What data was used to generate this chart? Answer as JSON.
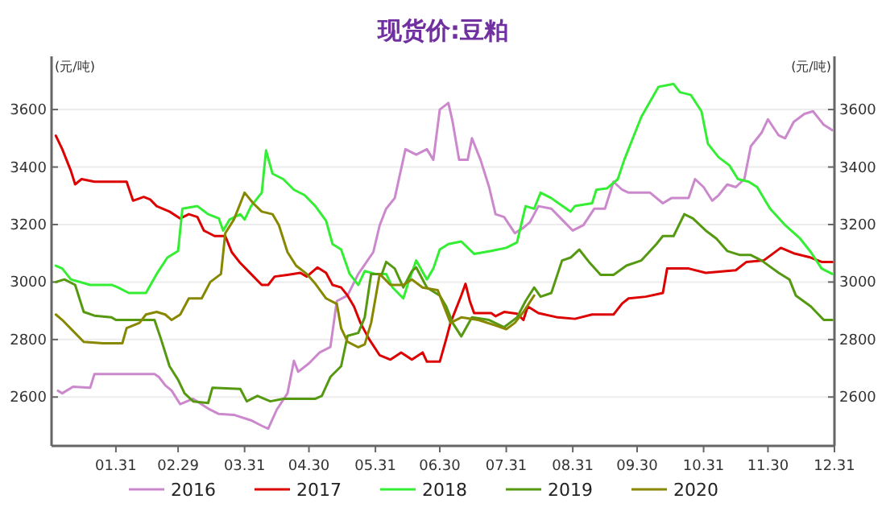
{
  "chart_data": {
    "type": "line",
    "title": "现货价:豆粕",
    "ylabel": "(元/吨)",
    "y2label": "(元/吨)",
    "xlim": [
      "--01-01",
      "--12-31"
    ],
    "xticks": [
      {
        "value": "--01-31",
        "label": "01.31"
      },
      {
        "value": "--02-29",
        "label": "02.29"
      },
      {
        "value": "--03-31",
        "label": "03.31"
      },
      {
        "value": "--04-30",
        "label": "04.30"
      },
      {
        "value": "--05-31",
        "label": "05.31"
      },
      {
        "value": "--06-30",
        "label": "06.30"
      },
      {
        "value": "--07-31",
        "label": "07.31"
      },
      {
        "value": "--08-31",
        "label": "08.31"
      },
      {
        "value": "--09-30",
        "label": "09.30"
      },
      {
        "value": "--10-31",
        "label": "10.31"
      },
      {
        "value": "--11-30",
        "label": "11.30"
      },
      {
        "value": "--12-31",
        "label": "12.31"
      }
    ],
    "ylim": [
      2430,
      3785
    ],
    "yticks": [
      2600,
      2800,
      3000,
      3200,
      3400,
      3600
    ],
    "y2lim": [
      2430,
      3785
    ],
    "y2ticks": [
      2600,
      2800,
      3000,
      3200,
      3400,
      3600
    ],
    "grid": "y",
    "legend": "bottom",
    "marker": "none",
    "line_style": "solid",
    "series": [
      {
        "name": "2016",
        "color": "#cc88cc",
        "x": [
          "--01-04",
          "--01-06",
          "--01-11",
          "--01-19",
          "--01-21",
          "--02-18",
          "--02-20",
          "--02-23",
          "--02-26",
          "--03-01",
          "--03-07",
          "--03-14",
          "--03-19",
          "--03-26",
          "--04-03",
          "--04-08",
          "--04-11",
          "--04-15",
          "--04-20",
          "--04-23",
          "--04-25",
          "--04-30",
          "--05-05",
          "--05-10",
          "--05-13",
          "--05-18",
          "--05-23",
          "--05-30",
          "--06-02",
          "--06-05",
          "--06-09",
          "--06-14",
          "--06-19",
          "--06-24",
          "--06-27",
          "--06-30",
          "--07-04",
          "--07-06",
          "--07-09",
          "--07-13",
          "--07-15",
          "--07-19",
          "--07-23",
          "--07-26",
          "--07-30",
          "--08-04",
          "--08-08",
          "--08-11",
          "--08-15",
          "--08-21",
          "--08-26",
          "--08-31",
          "--09-05",
          "--09-10",
          "--09-15",
          "--09-19",
          "--09-23",
          "--09-26",
          "--10-06",
          "--10-12",
          "--10-16",
          "--10-24",
          "--10-27",
          "--10-31",
          "--11-04",
          "--11-07",
          "--11-11",
          "--11-15",
          "--11-19",
          "--11-22",
          "--11-27",
          "--11-30",
          "--12-05",
          "--12-08",
          "--12-12",
          "--12-17",
          "--12-21",
          "--12-26",
          "--12-30"
        ],
        "values": [
          2622,
          2613,
          2636,
          2632,
          2680,
          2680,
          2670,
          2641,
          2622,
          2575,
          2594,
          2560,
          2541,
          2538,
          2519,
          2500,
          2490,
          2556,
          2613,
          2726,
          2688,
          2717,
          2755,
          2774,
          2934,
          2953,
          3028,
          3104,
          3198,
          3255,
          3292,
          3462,
          3443,
          3462,
          3425,
          3600,
          3623,
          3557,
          3425,
          3425,
          3500,
          3425,
          3330,
          3236,
          3226,
          3170,
          3189,
          3208,
          3264,
          3255,
          3217,
          3179,
          3198,
          3255,
          3255,
          3349,
          3321,
          3311,
          3311,
          3274,
          3292,
          3292,
          3358,
          3330,
          3283,
          3302,
          3339,
          3330,
          3358,
          3472,
          3519,
          3566,
          3510,
          3500,
          3557,
          3585,
          3594,
          3547,
          3528
        ]
      },
      {
        "name": "2017",
        "color": "#dd0000",
        "x": [
          "--01-03",
          "--01-06",
          "--01-10",
          "--01-12",
          "--01-15",
          "--01-21",
          "--02-05",
          "--02-08",
          "--02-13",
          "--02-16",
          "--02-19",
          "--02-25",
          "--03-01",
          "--03-05",
          "--03-09",
          "--03-12",
          "--03-17",
          "--03-22",
          "--03-25",
          "--03-29",
          "--04-03",
          "--04-08",
          "--04-11",
          "--04-14",
          "--04-20",
          "--04-26",
          "--04-29",
          "--05-04",
          "--05-08",
          "--05-11",
          "--05-15",
          "--05-18",
          "--05-21",
          "--05-24",
          "--05-28",
          "--06-02",
          "--06-07",
          "--06-12",
          "--06-17",
          "--06-22",
          "--06-24",
          "--06-30",
          "--07-03",
          "--07-05",
          "--07-10",
          "--07-12",
          "--07-14",
          "--07-16",
          "--07-24",
          "--07-26",
          "--07-30",
          "--08-05",
          "--08-08",
          "--08-10",
          "--08-15",
          "--08-24",
          "--09-01",
          "--09-09",
          "--09-19",
          "--09-23",
          "--09-26",
          "--10-04",
          "--10-12",
          "--10-14",
          "--10-24",
          "--11-01",
          "--11-15",
          "--11-20",
          "--11-28",
          "--12-06",
          "--12-12",
          "--12-20",
          "--12-25",
          "--12-30"
        ],
        "values": [
          3509,
          3462,
          3387,
          3340,
          3358,
          3349,
          3349,
          3283,
          3296,
          3287,
          3264,
          3245,
          3221,
          3236,
          3226,
          3179,
          3160,
          3160,
          3104,
          3066,
          3028,
          2990,
          2990,
          3019,
          3025,
          3032,
          3019,
          3051,
          3032,
          2990,
          2981,
          2953,
          2915,
          2858,
          2802,
          2745,
          2730,
          2755,
          2730,
          2755,
          2723,
          2723,
          2802,
          2858,
          2953,
          2994,
          2934,
          2892,
          2892,
          2881,
          2896,
          2890,
          2868,
          2915,
          2892,
          2877,
          2872,
          2887,
          2887,
          2925,
          2943,
          2949,
          2962,
          3047,
          3047,
          3032,
          3041,
          3070,
          3075,
          3119,
          3100,
          3085,
          3070,
          3070
        ]
      },
      {
        "name": "2018",
        "color": "#33ee33",
        "x": [
          "--01-03",
          "--01-06",
          "--01-10",
          "--01-19",
          "--01-29",
          "--02-01",
          "--02-06",
          "--02-14",
          "--02-19",
          "--02-24",
          "--02-29",
          "--03-02",
          "--03-09",
          "--03-14",
          "--03-19",
          "--03-21",
          "--03-24",
          "--03-29",
          "--03-31",
          "--04-03",
          "--04-08",
          "--04-10",
          "--04-13",
          "--04-18",
          "--04-23",
          "--04-28",
          "--05-03",
          "--05-08",
          "--05-11",
          "--05-15",
          "--05-19",
          "--05-23",
          "--05-26",
          "--05-31",
          "--06-05",
          "--06-08",
          "--06-13",
          "--06-15",
          "--06-19",
          "--06-24",
          "--06-27",
          "--06-30",
          "--07-04",
          "--07-10",
          "--07-16",
          "--07-24",
          "--07-31",
          "--08-05",
          "--08-09",
          "--08-13",
          "--08-16",
          "--08-21",
          "--08-28",
          "--08-30",
          "--09-01",
          "--09-09",
          "--09-11",
          "--09-16",
          "--09-21",
          "--09-24",
          "--09-29",
          "--10-02",
          "--10-10",
          "--10-17",
          "--10-20",
          "--10-25",
          "--10-30",
          "--11-02",
          "--11-07",
          "--11-12",
          "--11-16",
          "--11-21",
          "--11-25",
          "--12-01",
          "--12-08",
          "--12-15",
          "--12-20",
          "--12-25",
          "--12-30"
        ],
        "values": [
          3057,
          3047,
          3009,
          2990,
          2990,
          2981,
          2962,
          2962,
          3028,
          3085,
          3108,
          3255,
          3264,
          3236,
          3221,
          3179,
          3217,
          3236,
          3217,
          3264,
          3311,
          3458,
          3377,
          3358,
          3321,
          3302,
          3264,
          3213,
          3132,
          3113,
          3028,
          2990,
          3038,
          3028,
          3028,
          2981,
          2943,
          2990,
          3075,
          3009,
          3047,
          3113,
          3132,
          3141,
          3098,
          3108,
          3119,
          3138,
          3264,
          3255,
          3311,
          3292,
          3255,
          3245,
          3264,
          3274,
          3321,
          3326,
          3358,
          3425,
          3519,
          3575,
          3679,
          3689,
          3660,
          3651,
          3594,
          3481,
          3434,
          3406,
          3358,
          3349,
          3330,
          3255,
          3198,
          3151,
          3104,
          3047,
          3028
        ]
      },
      {
        "name": "2019",
        "color": "#559911",
        "x": [
          "--01-03",
          "--01-07",
          "--01-12",
          "--01-16",
          "--01-21",
          "--01-29",
          "--01-31",
          "--02-18",
          "--02-21",
          "--02-25",
          "--02-29",
          "--03-03",
          "--03-07",
          "--03-14",
          "--03-16",
          "--03-29",
          "--04-01",
          "--04-06",
          "--04-12",
          "--04-18",
          "--05-03",
          "--05-06",
          "--05-10",
          "--05-15",
          "--05-18",
          "--05-23",
          "--05-26",
          "--05-29",
          "--06-03",
          "--06-05",
          "--06-09",
          "--06-13",
          "--06-17",
          "--06-19",
          "--06-24",
          "--06-30",
          "--07-03",
          "--07-06",
          "--07-10",
          "--07-15",
          "--07-23",
          "--07-30",
          "--08-05",
          "--08-09",
          "--08-13",
          "--08-16",
          "--08-21",
          "--08-26",
          "--08-30",
          "--09-03",
          "--09-08",
          "--09-13",
          "--09-19",
          "--09-25",
          "--10-02",
          "--10-09",
          "--10-12",
          "--10-17",
          "--10-22",
          "--10-26",
          "--11-01",
          "--11-06",
          "--11-11",
          "--11-17",
          "--11-22",
          "--11-27",
          "--12-05",
          "--12-10",
          "--12-13",
          "--12-20",
          "--12-26",
          "--12-30"
        ],
        "values": [
          3000,
          3009,
          2990,
          2896,
          2883,
          2877,
          2868,
          2868,
          2802,
          2707,
          2660,
          2613,
          2585,
          2579,
          2632,
          2628,
          2585,
          2604,
          2585,
          2594,
          2594,
          2604,
          2670,
          2707,
          2813,
          2823,
          2877,
          3028,
          3028,
          3070,
          3047,
          2981,
          3038,
          3051,
          2981,
          2953,
          2915,
          2858,
          2811,
          2877,
          2868,
          2843,
          2877,
          2934,
          2981,
          2949,
          2962,
          3075,
          3085,
          3113,
          3066,
          3025,
          3025,
          3057,
          3075,
          3132,
          3160,
          3160,
          3236,
          3221,
          3179,
          3151,
          3108,
          3094,
          3094,
          3075,
          3032,
          3009,
          2953,
          2915,
          2868,
          2868
        ]
      },
      {
        "name": "2020",
        "color": "#888800",
        "x": [
          "--01-03",
          "--01-06",
          "--01-11",
          "--01-16",
          "--01-25",
          "--02-03",
          "--02-05",
          "--02-11",
          "--02-14",
          "--02-19",
          "--02-23",
          "--02-26",
          "--03-01",
          "--03-05",
          "--03-11",
          "--03-15",
          "--03-20",
          "--03-22",
          "--03-26",
          "--03-31",
          "--04-04",
          "--04-08",
          "--04-13",
          "--04-16",
          "--04-20",
          "--04-24",
          "--04-29",
          "--05-03",
          "--05-08",
          "--05-13",
          "--05-15",
          "--05-18",
          "--05-23",
          "--05-26",
          "--05-29",
          "--06-02",
          "--06-07",
          "--06-13",
          "--06-17",
          "--06-22",
          "--06-29",
          "--07-05",
          "--07-10",
          "--07-18",
          "--07-26",
          "--07-31",
          "--08-04",
          "--08-08",
          "--08-13"
        ],
        "values": [
          2887,
          2868,
          2830,
          2792,
          2787,
          2787,
          2840,
          2858,
          2887,
          2896,
          2887,
          2868,
          2887,
          2943,
          2943,
          3000,
          3028,
          3170,
          3217,
          3311,
          3274,
          3245,
          3236,
          3198,
          3104,
          3057,
          3028,
          2994,
          2943,
          2924,
          2840,
          2792,
          2773,
          2783,
          2858,
          3028,
          2990,
          2990,
          3009,
          2981,
          2972,
          2858,
          2877,
          2868,
          2849,
          2836,
          2858,
          2896,
          2953
        ]
      }
    ]
  }
}
